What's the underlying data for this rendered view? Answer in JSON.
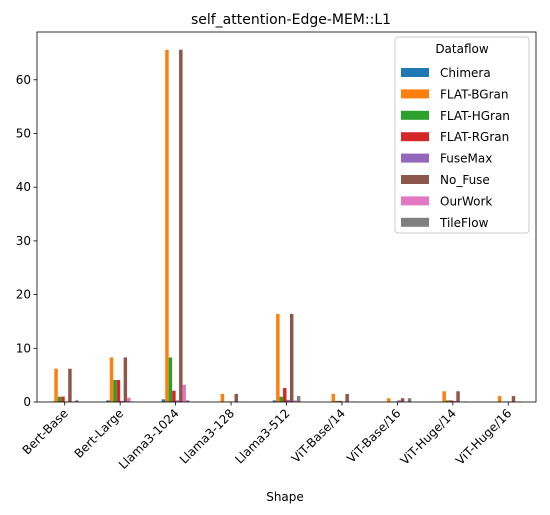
{
  "chart_data": {
    "type": "bar",
    "title": "self_attention-Edge-MEM::L1",
    "xlabel": "Shape",
    "ylabel": "",
    "ylim": [
      0,
      68.9
    ],
    "yticks": [
      0,
      10,
      20,
      30,
      40,
      50,
      60
    ],
    "grid": false,
    "legend_title": "Dataflow",
    "legend_position": "top-right",
    "categories": [
      "Bert-Base",
      "Bert-Large",
      "Llama3-1024",
      "Llama3-128",
      "Llama3-512",
      "ViT-Base/14",
      "ViT-Base/16",
      "ViT-Huge/14",
      "ViT-Huge/16"
    ],
    "series": [
      {
        "name": "Chimera",
        "color": "#1f77b4",
        "values": [
          0.1,
          0.3,
          0.5,
          0.05,
          0.3,
          0.05,
          0.05,
          0.05,
          0.05
        ]
      },
      {
        "name": "FLAT-BGran",
        "color": "#ff7f0e",
        "values": [
          6.2,
          8.3,
          65.6,
          1.5,
          16.4,
          1.5,
          0.7,
          2.0,
          1.1
        ]
      },
      {
        "name": "FLAT-HGran",
        "color": "#2ca02c",
        "values": [
          1.0,
          4.1,
          8.3,
          0.1,
          1.0,
          0.2,
          0.1,
          0.3,
          0.1
        ]
      },
      {
        "name": "FLAT-RGran",
        "color": "#d62728",
        "values": [
          1.0,
          4.1,
          2.1,
          0.1,
          2.6,
          0.2,
          0.1,
          0.3,
          0.1
        ]
      },
      {
        "name": "FuseMax",
        "color": "#9467bd",
        "values": [
          0.1,
          0.2,
          0.3,
          0.05,
          0.4,
          0.05,
          0.3,
          0.2,
          0.1
        ]
      },
      {
        "name": "No_Fuse",
        "color": "#8c564b",
        "values": [
          6.2,
          8.3,
          65.6,
          1.5,
          16.4,
          1.5,
          0.7,
          2.0,
          1.1
        ]
      },
      {
        "name": "OurWork",
        "color": "#e377c2",
        "values": [
          0.1,
          0.8,
          3.2,
          0.05,
          0.3,
          0.05,
          0.05,
          0.05,
          0.05
        ]
      },
      {
        "name": "TileFlow",
        "color": "#7f7f7f",
        "values": [
          0.3,
          0.1,
          0.3,
          0.05,
          1.1,
          0.1,
          0.7,
          0.1,
          0.1
        ]
      }
    ]
  }
}
